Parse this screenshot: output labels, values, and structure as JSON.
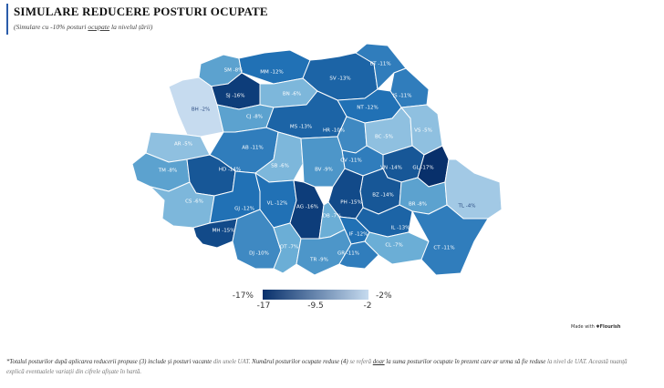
{
  "header": {
    "title": "SIMULARE REDUCERE POSTURI OCUPATE",
    "subtitle_pre": "(Simulare cu -10% posturi ",
    "subtitle_link": "ocupate",
    "subtitle_post": " la nivelul țării)"
  },
  "legend": {
    "min_label": "-17%",
    "max_label": "-2%",
    "ticks": [
      "-17",
      "-9.5",
      "-2"
    ],
    "color_min": "#08306b",
    "color_max": "#c6dbef"
  },
  "counties": [
    {
      "code": "SM",
      "value": -8,
      "label": "SM -8%"
    },
    {
      "code": "MM",
      "value": -12,
      "label": "MM -12%"
    },
    {
      "code": "SV",
      "value": -13,
      "label": "SV -13%"
    },
    {
      "code": "BT",
      "value": -11,
      "label": "BT -11%"
    },
    {
      "code": "SJ",
      "value": -16,
      "label": "SJ -16%"
    },
    {
      "code": "BN",
      "value": -6,
      "label": "BN -6%"
    },
    {
      "code": "IS",
      "value": -11,
      "label": "IS -11%"
    },
    {
      "code": "BH",
      "value": -2,
      "label": "BH -2%"
    },
    {
      "code": "CJ",
      "value": -8,
      "label": "CJ -8%"
    },
    {
      "code": "NT",
      "value": -12,
      "label": "NT -12%"
    },
    {
      "code": "MS",
      "value": -13,
      "label": "MS -13%"
    },
    {
      "code": "HR",
      "value": -10,
      "label": "HR -10%"
    },
    {
      "code": "BC",
      "value": -5,
      "label": "BC -5%"
    },
    {
      "code": "VS",
      "value": -5,
      "label": "VS -5%"
    },
    {
      "code": "AR",
      "value": -5,
      "label": "AR -5%"
    },
    {
      "code": "AB",
      "value": -11,
      "label": "AB -11%"
    },
    {
      "code": "CV",
      "value": -11,
      "label": "CV -11%"
    },
    {
      "code": "VN",
      "value": -14,
      "label": "VN -14%"
    },
    {
      "code": "GL",
      "value": -17,
      "label": "GL -17%"
    },
    {
      "code": "TM",
      "value": -8,
      "label": "TM -8%"
    },
    {
      "code": "HD",
      "value": -14,
      "label": "HD -14%"
    },
    {
      "code": "SB",
      "value": -6,
      "label": "SB -6%"
    },
    {
      "code": "BV",
      "value": -9,
      "label": "BV -9%"
    },
    {
      "code": "CS",
      "value": -6,
      "label": "CS -6%"
    },
    {
      "code": "BZ",
      "value": -14,
      "label": "BZ -14%"
    },
    {
      "code": "BR",
      "value": -8,
      "label": "BR -8%"
    },
    {
      "code": "TL",
      "value": -4,
      "label": "TL -4%"
    },
    {
      "code": "GJ",
      "value": -12,
      "label": "GJ -12%"
    },
    {
      "code": "VL",
      "value": -12,
      "label": "VL -12%"
    },
    {
      "code": "AG",
      "value": -16,
      "label": "AG -16%"
    },
    {
      "code": "PH",
      "value": -15,
      "label": "PH -15%"
    },
    {
      "code": "DB",
      "value": -7,
      "label": "DB -7%"
    },
    {
      "code": "MH",
      "value": -15,
      "label": "MH -15%"
    },
    {
      "code": "IL",
      "value": -13,
      "label": "IL -13%"
    },
    {
      "code": "IF",
      "value": -12,
      "label": "IF -12%"
    },
    {
      "code": "DJ",
      "value": -10,
      "label": "DJ -10%"
    },
    {
      "code": "OT",
      "value": -7,
      "label": "OT -7%"
    },
    {
      "code": "CL",
      "value": -7,
      "label": "CL -7%"
    },
    {
      "code": "CT",
      "value": -11,
      "label": "CT -11%"
    },
    {
      "code": "TR",
      "value": -9,
      "label": "TR -9%"
    },
    {
      "code": "GR",
      "value": -11,
      "label": "GR -11%"
    }
  ],
  "credit": {
    "prefix": "Made with ",
    "brand": "Flourish"
  },
  "footnote": {
    "p1": "*Totalul posturilor după aplicarea reducerii propuse (3) include și posturi vacante ",
    "p2": "din unele UAT.",
    "p3": " Numărul posturilor ocupate reduse (4) ",
    "p4": "se referă ",
    "p5": "doar",
    "p6": " la suma posturilor ocupate în prezent care ar urma să fie reduse ",
    "p7": "la nivel de UAT. Această nuanță explică eventualele variații din cifrele afișate în hartă."
  }
}
